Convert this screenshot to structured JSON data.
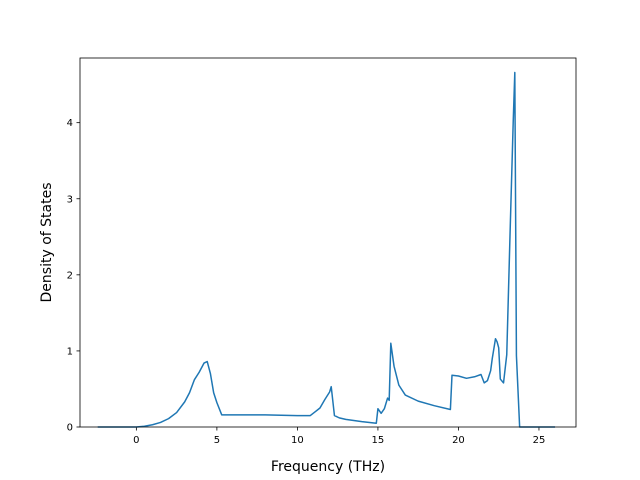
{
  "chart_data": {
    "type": "line",
    "title": "",
    "xlabel": "Frequency (THz)",
    "ylabel": "Density of States",
    "xlim": [
      -3.5,
      27.3
    ],
    "ylim": [
      0,
      4.85
    ],
    "xticks": [
      0,
      5,
      10,
      15,
      20,
      25
    ],
    "xtick_labels": [
      "0",
      "5",
      "10",
      "15",
      "20",
      "25"
    ],
    "yticks": [
      0,
      1,
      2,
      3,
      4
    ],
    "ytick_labels": [
      "0",
      "1",
      "2",
      "3",
      "4"
    ],
    "grid": false,
    "series": [
      {
        "color": "#1f77b4",
        "x": [
          -2.4,
          -1.0,
          0.0,
          0.5,
          1.0,
          1.5,
          2.0,
          2.5,
          3.0,
          3.3,
          3.6,
          3.9,
          4.2,
          4.4,
          4.6,
          4.8,
          5.0,
          5.3,
          6.0,
          8.0,
          10.0,
          10.8,
          11.1,
          11.4,
          11.7,
          12.0,
          12.1,
          12.3,
          12.6,
          13.0,
          14.0,
          14.9,
          15.0,
          15.2,
          15.4,
          15.6,
          15.7,
          15.8,
          16.0,
          16.3,
          16.7,
          17.5,
          18.5,
          19.5,
          19.6,
          20.0,
          20.5,
          21.0,
          21.4,
          21.6,
          21.8,
          22.0,
          22.1,
          22.3,
          22.4,
          22.5,
          22.6,
          22.8,
          23.0,
          23.2,
          23.4,
          23.5,
          23.6,
          23.8,
          24.5,
          26.0
        ],
        "y": [
          0.0,
          0.0,
          0.0,
          0.01,
          0.03,
          0.06,
          0.11,
          0.19,
          0.33,
          0.45,
          0.62,
          0.72,
          0.84,
          0.86,
          0.7,
          0.45,
          0.32,
          0.16,
          0.16,
          0.16,
          0.15,
          0.15,
          0.2,
          0.25,
          0.36,
          0.46,
          0.53,
          0.15,
          0.12,
          0.1,
          0.07,
          0.05,
          0.24,
          0.18,
          0.24,
          0.38,
          0.35,
          1.1,
          0.8,
          0.55,
          0.42,
          0.34,
          0.28,
          0.23,
          0.68,
          0.67,
          0.64,
          0.66,
          0.69,
          0.58,
          0.61,
          0.74,
          0.9,
          1.16,
          1.12,
          1.04,
          0.63,
          0.58,
          0.95,
          2.5,
          4.0,
          4.66,
          0.94,
          0.0,
          0.0,
          0.0
        ]
      }
    ]
  }
}
